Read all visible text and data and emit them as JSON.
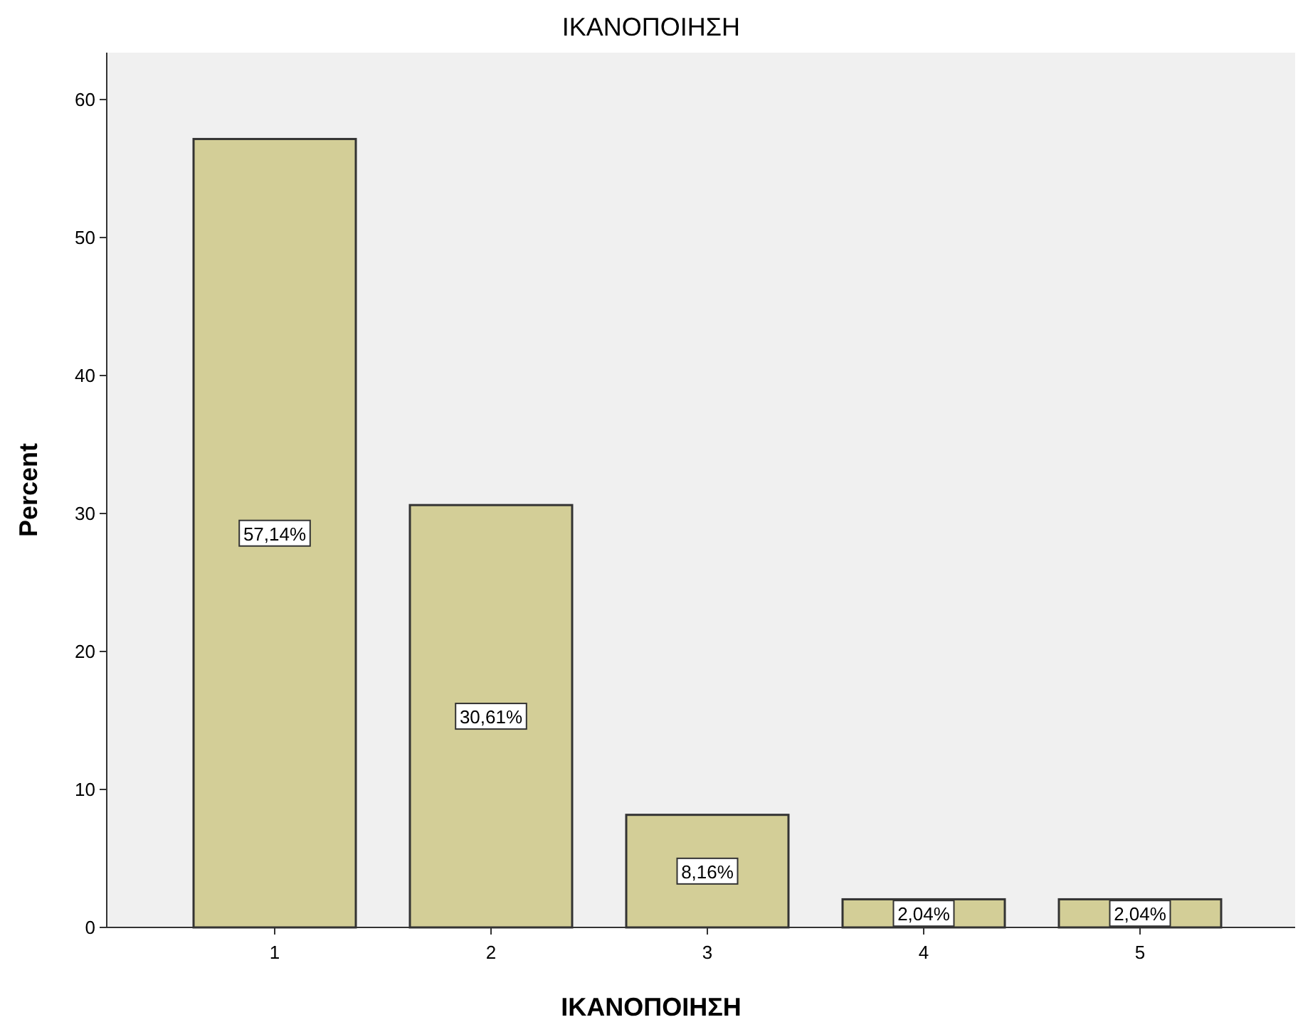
{
  "chart_data": {
    "type": "bar",
    "title": "ΙΚΑΝΟΠΟΙΗΣΗ",
    "xlabel": "ΙΚΑΝΟΠΟΙΗΣΗ",
    "ylabel": "Percent",
    "categories": [
      "1",
      "2",
      "3",
      "4",
      "5"
    ],
    "values": [
      57.14,
      30.61,
      8.16,
      2.04,
      2.04
    ],
    "value_labels": [
      "57,14%",
      "30,61%",
      "8,16%",
      "2,04%",
      "2,04%"
    ],
    "color": "#d3ce97",
    "ylim": [
      0,
      63.4
    ],
    "yticks": [
      0,
      10,
      20,
      30,
      40,
      50,
      60
    ],
    "grid": false
  }
}
